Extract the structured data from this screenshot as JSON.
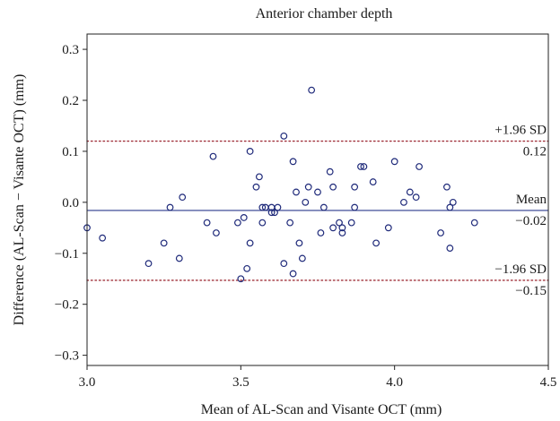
{
  "chart_data": {
    "type": "scatter",
    "title": "Anterior chamber depth",
    "xlabel": "Mean of AL-Scan and Visante OCT (mm)",
    "ylabel": "Difference (AL-Scan − Visante OCT) (mm)",
    "xlim": [
      3.0,
      4.5
    ],
    "ylim": [
      -0.32,
      0.33
    ],
    "x_ticks": [
      "3.0",
      "3.5",
      "4.0",
      "4.5"
    ],
    "y_ticks": [
      "0.3",
      "0.2",
      "0.1",
      "0.0",
      "−0.1",
      "−0.2",
      "−0.3"
    ],
    "grid": false,
    "reference_lines": {
      "mean": {
        "label": "Mean",
        "value_label": "−0.02",
        "value": -0.016,
        "color": "#2b3a8c",
        "style": "solid"
      },
      "upper": {
        "label": "+1.96 SD",
        "value_label": "0.12",
        "value": 0.12,
        "color": "#a0303a",
        "style": "dotted"
      },
      "lower": {
        "label": "−1.96 SD",
        "value_label": "−0.15",
        "value": -0.153,
        "color": "#a0303a",
        "style": "dotted"
      }
    },
    "marker_color": "#1f2a7a",
    "points": [
      [
        3.0,
        -0.05
      ],
      [
        3.05,
        -0.07
      ],
      [
        3.2,
        -0.12
      ],
      [
        3.25,
        -0.08
      ],
      [
        3.27,
        -0.01
      ],
      [
        3.3,
        -0.11
      ],
      [
        3.31,
        0.01
      ],
      [
        3.39,
        -0.04
      ],
      [
        3.41,
        0.09
      ],
      [
        3.42,
        -0.06
      ],
      [
        3.49,
        -0.04
      ],
      [
        3.5,
        -0.15
      ],
      [
        3.51,
        -0.03
      ],
      [
        3.52,
        -0.13
      ],
      [
        3.53,
        -0.08
      ],
      [
        3.53,
        0.1
      ],
      [
        3.55,
        0.03
      ],
      [
        3.56,
        0.05
      ],
      [
        3.57,
        -0.04
      ],
      [
        3.57,
        -0.01
      ],
      [
        3.58,
        -0.01
      ],
      [
        3.6,
        -0.01
      ],
      [
        3.6,
        -0.02
      ],
      [
        3.61,
        -0.02
      ],
      [
        3.62,
        -0.01
      ],
      [
        3.64,
        0.13
      ],
      [
        3.64,
        -0.12
      ],
      [
        3.66,
        -0.04
      ],
      [
        3.67,
        -0.14
      ],
      [
        3.67,
        0.08
      ],
      [
        3.68,
        0.02
      ],
      [
        3.69,
        -0.08
      ],
      [
        3.7,
        -0.11
      ],
      [
        3.71,
        0.0
      ],
      [
        3.72,
        0.03
      ],
      [
        3.73,
        0.22
      ],
      [
        3.75,
        0.02
      ],
      [
        3.76,
        -0.06
      ],
      [
        3.77,
        -0.01
      ],
      [
        3.79,
        0.06
      ],
      [
        3.8,
        -0.05
      ],
      [
        3.8,
        0.03
      ],
      [
        3.82,
        -0.04
      ],
      [
        3.83,
        -0.05
      ],
      [
        3.83,
        -0.06
      ],
      [
        3.86,
        -0.04
      ],
      [
        3.87,
        -0.01
      ],
      [
        3.87,
        0.03
      ],
      [
        3.89,
        0.07
      ],
      [
        3.9,
        0.07
      ],
      [
        3.93,
        0.04
      ],
      [
        3.94,
        -0.08
      ],
      [
        3.98,
        -0.05
      ],
      [
        4.0,
        0.08
      ],
      [
        4.03,
        0.0
      ],
      [
        4.05,
        0.02
      ],
      [
        4.07,
        0.01
      ],
      [
        4.08,
        0.07
      ],
      [
        4.15,
        -0.06
      ],
      [
        4.17,
        0.03
      ],
      [
        4.18,
        -0.01
      ],
      [
        4.18,
        -0.09
      ],
      [
        4.19,
        0.0
      ],
      [
        4.26,
        -0.04
      ]
    ]
  }
}
